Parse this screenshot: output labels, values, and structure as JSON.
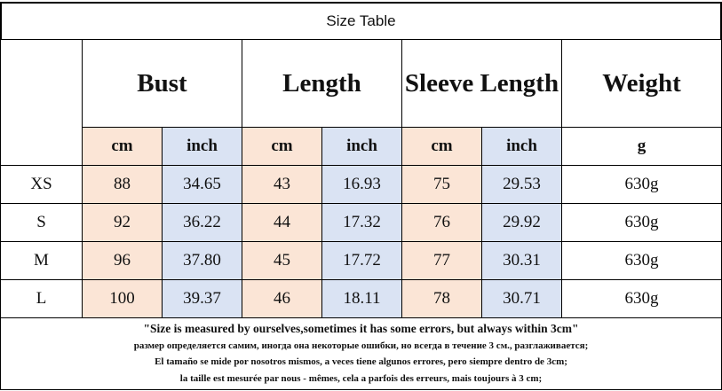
{
  "title": "Size Table",
  "table": {
    "groups": [
      "Bust",
      "Length",
      "Sleeve Length",
      "Weight"
    ],
    "units": [
      "cm",
      "inch",
      "cm",
      "inch",
      "cm",
      "inch",
      "g"
    ],
    "rows": [
      [
        "XS",
        "88",
        "34.65",
        "43",
        "16.93",
        "75",
        "29.53",
        "630g"
      ],
      [
        "S",
        "92",
        "36.22",
        "44",
        "17.32",
        "76",
        "29.92",
        "630g"
      ],
      [
        "M",
        "96",
        "37.80",
        "45",
        "17.72",
        "77",
        "30.31",
        "630g"
      ],
      [
        "L",
        "100",
        "39.37",
        "46",
        "18.11",
        "78",
        "30.71",
        "630g"
      ]
    ]
  },
  "notes": [
    "\"Size is measured by ourselves,sometimes it has some errors, but always within 3cm\"",
    "размер определяется самим, иногда она некоторые ошибки, но всегда в течение 3 см., разглаживается;",
    "El tamaño se mide por nosotros mismos, a veces tiene algunos errores, pero siempre dentro de 3cm;",
    "la taille est mesurée par nous - mêmes, cela a parfois des erreurs, mais toujours à 3 cm;"
  ]
}
